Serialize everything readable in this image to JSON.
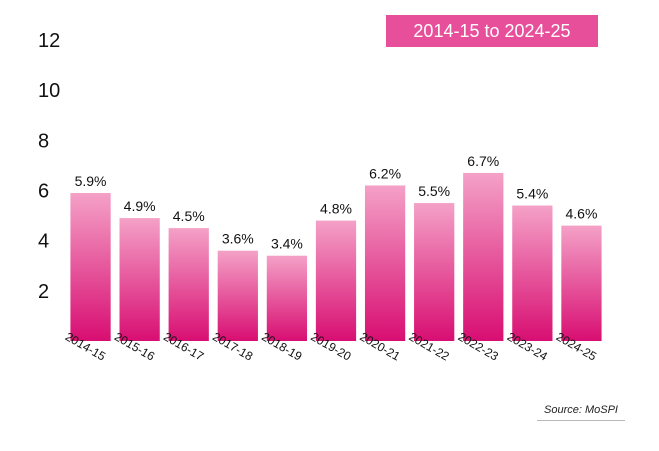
{
  "header": {
    "badge_label": "2014-15 to 2024-25"
  },
  "footer": {
    "source_label": "Source: MoSPI"
  },
  "theme": {
    "badge_color": "#e84f9a",
    "bar_top_color": "#f4a1c7",
    "bar_bottom_color": "#d80e72",
    "axis_text_color": "#111111",
    "data_label_color": "#111111"
  },
  "chart_data": {
    "type": "bar",
    "categories": [
      "2014-15",
      "2015-16",
      "2016-17",
      "2017-18",
      "2018-19",
      "2019-20",
      "2020-21",
      "2021-22",
      "2022-23",
      "2023-24",
      "2024-25"
    ],
    "values": [
      5.9,
      4.9,
      4.5,
      3.6,
      3.4,
      4.8,
      6.2,
      5.5,
      6.7,
      5.4,
      4.6
    ],
    "data_labels": [
      "5.9%",
      "4.9%",
      "4.5%",
      "3.6%",
      "3.4%",
      "4.8%",
      "6.2%",
      "5.5%",
      "6.7%",
      "5.4%",
      "4.6%"
    ],
    "yticks": [
      2,
      4,
      6,
      8,
      10,
      12
    ],
    "ytick_labels": [
      "2",
      "4",
      "6",
      "8",
      "10",
      "12"
    ],
    "ylim": [
      0,
      12
    ],
    "grid": false,
    "legend": "none",
    "x_tick_rotation": "diagonal"
  }
}
